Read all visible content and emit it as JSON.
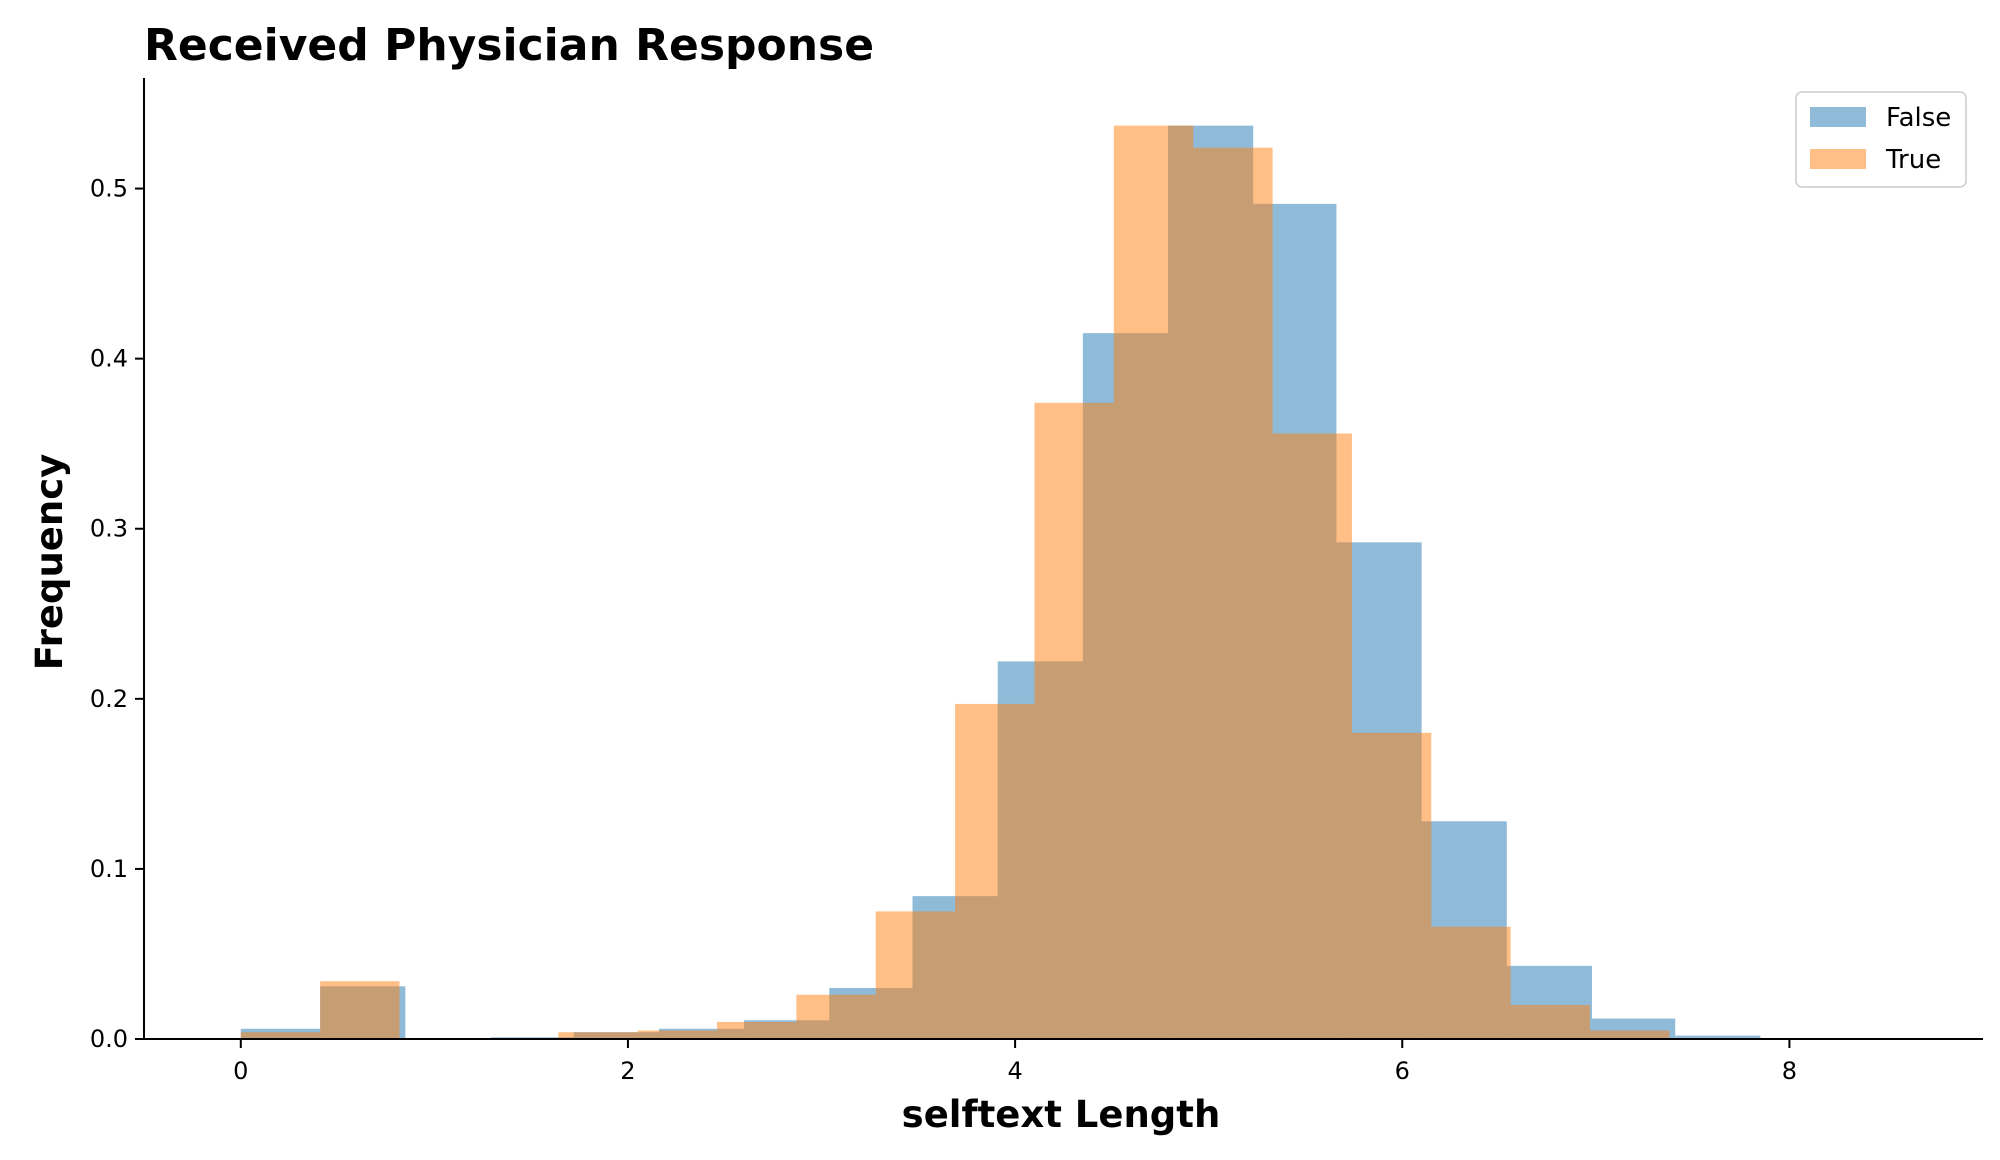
{
  "chart_data": {
    "type": "bar",
    "title": "Received Physician Response",
    "xlabel": "selftext Length",
    "ylabel": "Frequency",
    "xlim": [
      -0.5,
      9.0
    ],
    "ylim": [
      0,
      0.565
    ],
    "xticks": [
      0,
      2,
      4,
      6,
      8
    ],
    "yticks": [
      0.0,
      0.1,
      0.2,
      0.3,
      0.4,
      0.5
    ],
    "xtick_labels": [
      "0",
      "2",
      "4",
      "6",
      "8"
    ],
    "ytick_labels": [
      "0.0",
      "0.1",
      "0.2",
      "0.3",
      "0.4",
      "0.5"
    ],
    "legend_position": "top-right",
    "series": [
      {
        "name": "False",
        "color": "#1f77b4",
        "bins": [
          {
            "x0": 0.0,
            "x1": 0.41,
            "y": 0.006
          },
          {
            "x0": 0.41,
            "x1": 0.85,
            "y": 0.031
          },
          {
            "x0": 1.29,
            "x1": 1.72,
            "y": 0.001
          },
          {
            "x0": 1.72,
            "x1": 2.16,
            "y": 0.004
          },
          {
            "x0": 2.16,
            "x1": 2.6,
            "y": 0.006
          },
          {
            "x0": 2.6,
            "x1": 3.04,
            "y": 0.011
          },
          {
            "x0": 3.04,
            "x1": 3.47,
            "y": 0.03
          },
          {
            "x0": 3.47,
            "x1": 3.91,
            "y": 0.084
          },
          {
            "x0": 3.91,
            "x1": 4.35,
            "y": 0.222
          },
          {
            "x0": 4.35,
            "x1": 4.79,
            "y": 0.415
          },
          {
            "x0": 4.79,
            "x1": 5.23,
            "y": 0.537
          },
          {
            "x0": 5.23,
            "x1": 5.66,
            "y": 0.491
          },
          {
            "x0": 5.66,
            "x1": 6.1,
            "y": 0.292
          },
          {
            "x0": 6.1,
            "x1": 6.54,
            "y": 0.128
          },
          {
            "x0": 6.54,
            "x1": 6.98,
            "y": 0.043
          },
          {
            "x0": 6.98,
            "x1": 7.41,
            "y": 0.012
          },
          {
            "x0": 7.41,
            "x1": 7.85,
            "y": 0.002
          }
        ]
      },
      {
        "name": "True",
        "color": "#ff7f0e",
        "bins": [
          {
            "x0": 0.0,
            "x1": 0.41,
            "y": 0.004
          },
          {
            "x0": 0.41,
            "x1": 0.82,
            "y": 0.034
          },
          {
            "x0": 1.64,
            "x1": 2.05,
            "y": 0.004
          },
          {
            "x0": 2.05,
            "x1": 2.46,
            "y": 0.005
          },
          {
            "x0": 2.46,
            "x1": 2.87,
            "y": 0.01
          },
          {
            "x0": 2.87,
            "x1": 3.28,
            "y": 0.026
          },
          {
            "x0": 3.28,
            "x1": 3.69,
            "y": 0.075
          },
          {
            "x0": 3.69,
            "x1": 4.1,
            "y": 0.197
          },
          {
            "x0": 4.1,
            "x1": 4.51,
            "y": 0.374
          },
          {
            "x0": 4.51,
            "x1": 4.92,
            "y": 0.537
          },
          {
            "x0": 4.92,
            "x1": 5.33,
            "y": 0.524
          },
          {
            "x0": 5.33,
            "x1": 5.74,
            "y": 0.356
          },
          {
            "x0": 5.74,
            "x1": 6.15,
            "y": 0.18
          },
          {
            "x0": 6.15,
            "x1": 6.56,
            "y": 0.066
          },
          {
            "x0": 6.56,
            "x1": 6.97,
            "y": 0.02
          },
          {
            "x0": 6.97,
            "x1": 7.38,
            "y": 0.005
          }
        ]
      }
    ]
  }
}
